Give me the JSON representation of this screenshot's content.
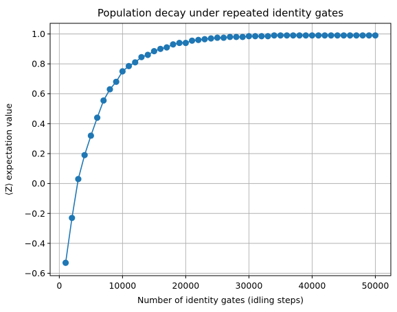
{
  "chart_data": {
    "type": "line",
    "title": "Population decay under repeated identity gates",
    "xlabel": "Number of identity gates (idling steps)",
    "ylabel": "⟨Z⟩ expectation value",
    "xlim": [
      -1450,
      52450
    ],
    "ylim": [
      -0.616,
      1.071
    ],
    "x_ticks": [
      0,
      10000,
      20000,
      30000,
      40000,
      50000
    ],
    "x_tick_labels": [
      "0",
      "10000",
      "20000",
      "30000",
      "40000",
      "50000"
    ],
    "y_ticks": [
      -0.6,
      -0.4,
      -0.2,
      0.0,
      0.2,
      0.4,
      0.6,
      0.8,
      1.0
    ],
    "y_tick_labels": [
      "−0.6",
      "−0.4",
      "−0.2",
      "0.0",
      "0.2",
      "0.4",
      "0.6",
      "0.8",
      "1.0"
    ],
    "grid": true,
    "series": [
      {
        "color": "#1f77b4",
        "marker": "circle",
        "x": [
          1000,
          2000,
          3000,
          4000,
          5000,
          6000,
          7000,
          8000,
          9000,
          10000,
          11000,
          12000,
          13000,
          14000,
          15000,
          16000,
          17000,
          18000,
          19000,
          20000,
          21000,
          22000,
          23000,
          24000,
          25000,
          26000,
          27000,
          28000,
          29000,
          30000,
          31000,
          32000,
          33000,
          34000,
          35000,
          36000,
          37000,
          38000,
          39000,
          40000,
          41000,
          42000,
          43000,
          44000,
          45000,
          46000,
          47000,
          48000,
          49000,
          50000
        ],
        "y": [
          -0.53,
          -0.23,
          0.03,
          0.19,
          0.32,
          0.44,
          0.555,
          0.63,
          0.68,
          0.75,
          0.785,
          0.81,
          0.845,
          0.86,
          0.885,
          0.9,
          0.91,
          0.93,
          0.94,
          0.94,
          0.955,
          0.96,
          0.965,
          0.97,
          0.975,
          0.975,
          0.98,
          0.98,
          0.98,
          0.985,
          0.985,
          0.985,
          0.985,
          0.99,
          0.99,
          0.99,
          0.99,
          0.99,
          0.99,
          0.99,
          0.99,
          0.99,
          0.99,
          0.99,
          0.99,
          0.99,
          0.99,
          0.99,
          0.99,
          0.99
        ]
      }
    ]
  }
}
